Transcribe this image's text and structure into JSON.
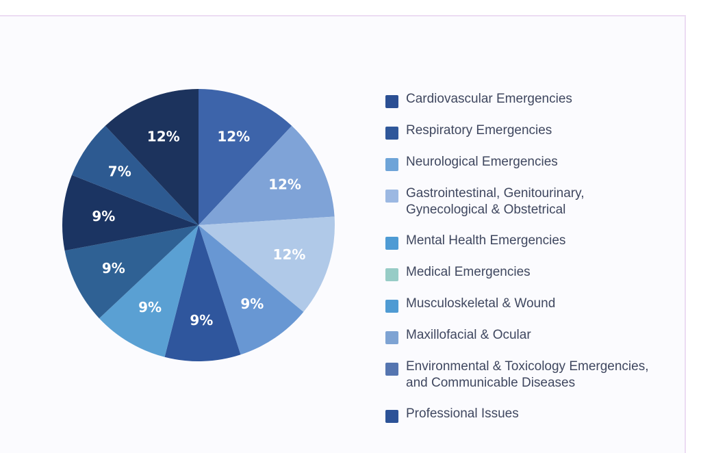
{
  "chart_data": {
    "type": "pie",
    "start_angle_deg": 0,
    "direction": "clockwise",
    "slices": [
      {
        "label": "Cardiovascular Emergencies",
        "value": 12,
        "value_label": "12%",
        "color": "#3d64aa"
      },
      {
        "label": "Respiratory Emergencies",
        "value": 12,
        "value_label": "12%",
        "color": "#7fa3d7"
      },
      {
        "label": "Neurological Emergencies",
        "value": 12,
        "value_label": "12%",
        "color": "#b0c9e8"
      },
      {
        "label": "Gastrointestinal, Genitourinary,\nGynecological & Obstetrical",
        "value": 9,
        "value_label": "9%",
        "color": "#6897d3"
      },
      {
        "label": "Mental Health Emergencies",
        "value": 9,
        "value_label": "9%",
        "color": "#2f569d"
      },
      {
        "label": "Medical Emergencies",
        "value": 9,
        "value_label": "9%",
        "color": "#5aa0d3"
      },
      {
        "label": "Musculoskeletal & Wound",
        "value": 9,
        "value_label": "9%",
        "color": "#2f6194"
      },
      {
        "label": "Maxillofacial & Ocular",
        "value": 9,
        "value_label": "9%",
        "color": "#1b3462"
      },
      {
        "label": "Environmental & Toxicology Emergencies,\nand Communicable Diseases",
        "value": 7,
        "value_label": "7%",
        "color": "#2d5a91"
      },
      {
        "label": "Professional Issues",
        "value": 12,
        "value_label": "12%",
        "color": "#1c335d"
      }
    ],
    "legend": {
      "position": "right",
      "items": [
        {
          "label": "Cardiovascular Emergencies",
          "color": "#2b4f93"
        },
        {
          "label": "Respiratory Emergencies",
          "color": "#2f579a"
        },
        {
          "label": "Neurological Emergencies",
          "color": "#6ea4d8"
        },
        {
          "label": "Gastrointestinal, Genitourinary,\nGynecological & Obstetrical",
          "color": "#9cb8e2"
        },
        {
          "label": "Mental Health Emergencies",
          "color": "#4e9bd4"
        },
        {
          "label": "Medical Emergencies",
          "color": "#97ccc6"
        },
        {
          "label": "Musculoskeletal & Wound",
          "color": "#4f9bd3"
        },
        {
          "label": "Maxillofacial & Ocular",
          "color": "#7ea3d3"
        },
        {
          "label": "Environmental & Toxicology Emergencies,\nand Communicable Diseases",
          "color": "#5575b0"
        },
        {
          "label": "Professional Issues",
          "color": "#2c5297"
        }
      ]
    }
  }
}
